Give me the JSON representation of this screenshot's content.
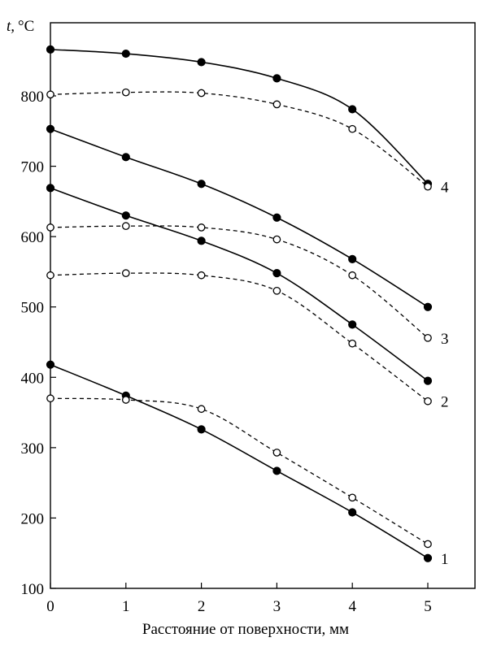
{
  "chart_data": {
    "type": "line",
    "ylabel_italic": "t,",
    "ylabel_unit": "°C",
    "xlabel": "Расстояние от поверхности, мм",
    "xlim": [
      0,
      5
    ],
    "ylim": [
      100,
      880
    ],
    "xticks": [
      0,
      1,
      2,
      3,
      4,
      5
    ],
    "yticks": [
      100,
      200,
      300,
      400,
      500,
      600,
      700,
      800
    ],
    "grid": false,
    "x": [
      0,
      1,
      2,
      3,
      4,
      5
    ],
    "series": [
      {
        "curve": "1",
        "marker": "filled",
        "style": "solid",
        "values": [
          418,
          374,
          326,
          267,
          208,
          143
        ]
      },
      {
        "curve": "1",
        "marker": "open",
        "style": "dashed",
        "values": [
          370,
          368,
          355,
          293,
          229,
          163
        ]
      },
      {
        "curve": "2",
        "marker": "filled",
        "style": "solid",
        "values": [
          669,
          630,
          594,
          548,
          475,
          395
        ]
      },
      {
        "curve": "2",
        "marker": "open",
        "style": "dashed",
        "values": [
          545,
          548,
          545,
          523,
          448,
          366
        ]
      },
      {
        "curve": "3",
        "marker": "filled",
        "style": "solid",
        "values": [
          753,
          713,
          675,
          627,
          568,
          500
        ]
      },
      {
        "curve": "3",
        "marker": "open",
        "style": "dashed",
        "values": [
          613,
          615,
          613,
          596,
          545,
          456
        ]
      },
      {
        "curve": "4",
        "marker": "filled",
        "style": "solid",
        "values": [
          866,
          860,
          848,
          825,
          781,
          675
        ]
      },
      {
        "curve": "4",
        "marker": "open",
        "style": "dashed",
        "values": [
          802,
          805,
          804,
          788,
          753,
          671
        ]
      }
    ],
    "curve_labels": [
      {
        "text": "1",
        "y": 143
      },
      {
        "text": "2",
        "y": 366
      },
      {
        "text": "3",
        "y": 456
      },
      {
        "text": "4",
        "y": 671
      }
    ]
  }
}
